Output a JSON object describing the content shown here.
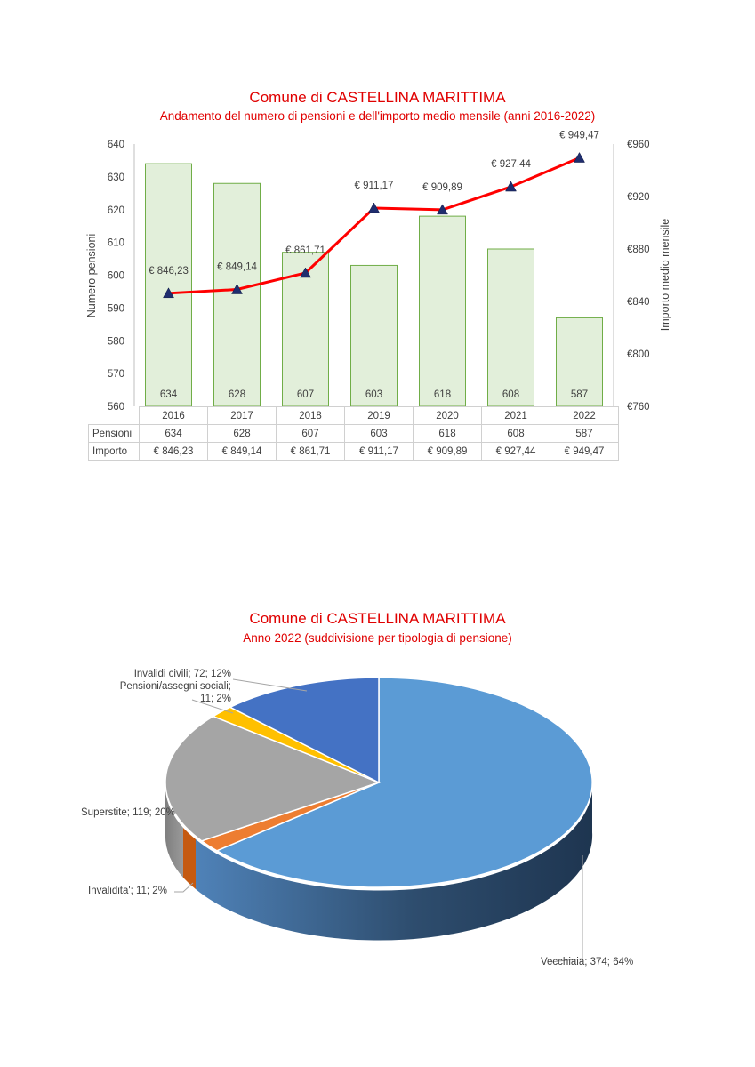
{
  "chart_data": [
    {
      "type": "bar+line",
      "title": "Comune di CASTELLINA MARITTIMA",
      "subtitle": "Andamento del numero di pensioni e dell'importo medio mensile (anni 2016-2022)",
      "categories": [
        "2016",
        "2017",
        "2018",
        "2019",
        "2020",
        "2021",
        "2022"
      ],
      "series": [
        {
          "name": "Pensioni",
          "type": "bar",
          "axis": "left",
          "values": [
            634,
            628,
            607,
            603,
            618,
            608,
            587
          ],
          "labels": [
            "634",
            "628",
            "607",
            "603",
            "618",
            "608",
            "587"
          ],
          "color": "#e2efda",
          "border": "#70ad47"
        },
        {
          "name": "Importo",
          "type": "line",
          "axis": "right",
          "values": [
            846.23,
            849.14,
            861.71,
            911.17,
            909.89,
            927.44,
            949.47
          ],
          "labels": [
            "€ 846,23",
            "€ 849,14",
            "€ 861,71",
            "€ 911,17",
            "€ 909,89",
            "€ 927,44",
            "€ 949,47"
          ],
          "color": "#ff0000",
          "marker_color": "#1f2d6e"
        }
      ],
      "ylabel": "Numero pensioni",
      "y2label": "Importo medio mensile",
      "ylim": [
        560,
        640
      ],
      "y_ticks": [
        "560",
        "570",
        "580",
        "590",
        "600",
        "610",
        "620",
        "630",
        "640"
      ],
      "y2lim": [
        760,
        960
      ],
      "y2_ticks": [
        "€760",
        "€800",
        "€840",
        "€880",
        "€920",
        "€960"
      ],
      "grid": false,
      "data_table": {
        "rows": [
          {
            "label": "Pensioni",
            "values": [
              "634",
              "628",
              "607",
              "603",
              "618",
              "608",
              "587"
            ]
          },
          {
            "label": "Importo",
            "values": [
              "€ 846,23",
              "€ 849,14",
              "€ 861,71",
              "€ 911,17",
              "€ 909,89",
              "€ 927,44",
              "€ 949,47"
            ]
          }
        ]
      }
    },
    {
      "type": "pie",
      "title": "Comune di CASTELLINA MARITTIMA",
      "subtitle": "Anno 2022 (suddivisione per tipologia di pensione)",
      "slices": [
        {
          "label": "Vecchiaia; 374; 64%",
          "name": "Vecchiaia",
          "value": 374,
          "percent": 64,
          "color": "#5b9bd5"
        },
        {
          "label": "Invalidita'; 11; 2%",
          "name": "Invalidita'",
          "value": 11,
          "percent": 2,
          "color": "#ed7d31"
        },
        {
          "label": "Superstite; 119; 20%",
          "name": "Superstite",
          "value": 119,
          "percent": 20,
          "color": "#a5a5a5"
        },
        {
          "label": "Pensioni/assegni sociali;",
          "label2": "11; 2%",
          "name": "Pensioni/assegni sociali",
          "value": 11,
          "percent": 2,
          "color": "#ffc000"
        },
        {
          "label": "Invalidi civili; 72; 12%",
          "name": "Invalidi civili",
          "value": 72,
          "percent": 12,
          "color": "#4472c4"
        }
      ]
    }
  ]
}
